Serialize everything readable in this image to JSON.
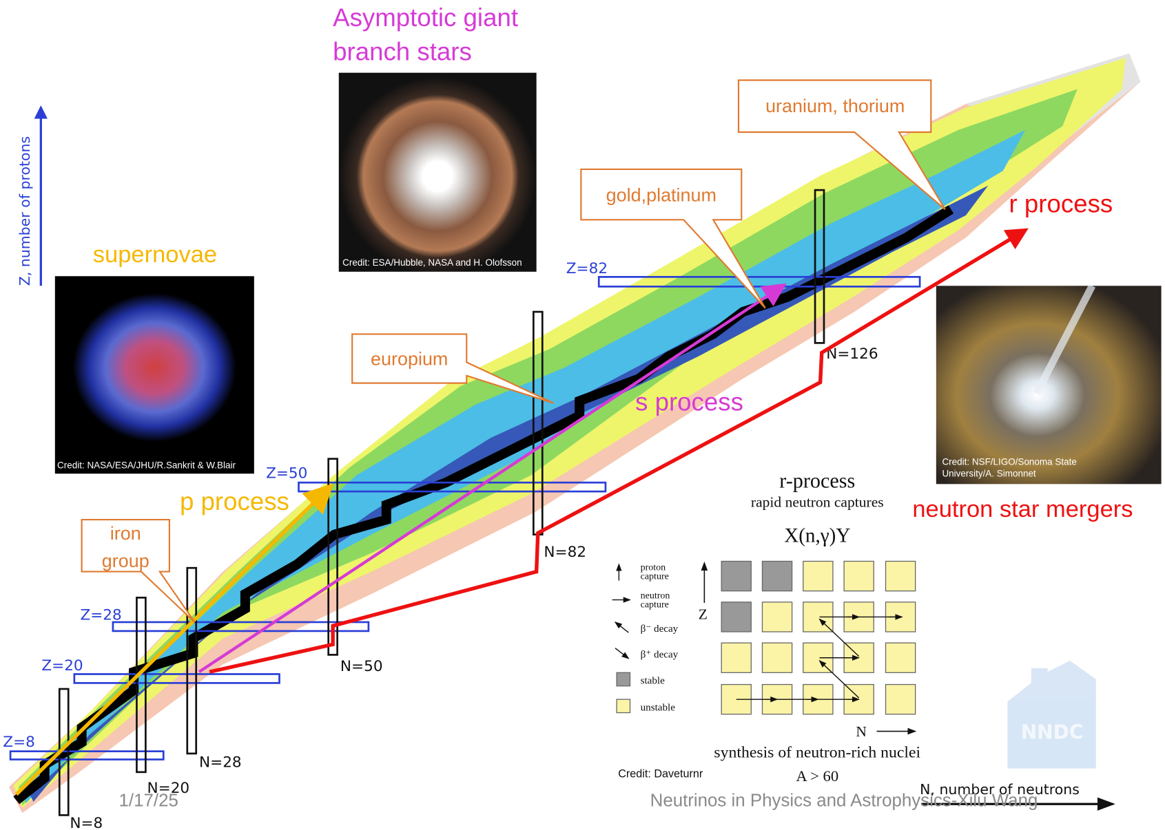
{
  "sources": {
    "agb_stars": [
      "Asymptotic giant",
      "branch stars"
    ],
    "supernovae": "supernovae",
    "neutron_star_mergers": "neutron star mergers"
  },
  "credits": {
    "agb_stars": "Credit: ESA/Hubble, NASA and H. Olofsson",
    "supernovae": "Credit: NASA/ESA/JHU/R.Sankrit & W.Blair",
    "neutron_star_mergers": [
      "Credit: NSF/LIGO/Sonoma State",
      "University/A. Simonnet"
    ]
  },
  "processes": {
    "p": "p process",
    "s": "s process",
    "r": "r process"
  },
  "callouts": [
    "uranium, thorium",
    "gold,platinum",
    "europium",
    [
      "iron",
      "group"
    ]
  ],
  "axes": {
    "z": "Z, number of protons",
    "n": "N, number of neutrons"
  },
  "magic_numbers": {
    "z": [
      "Z=8",
      "Z=20",
      "Z=28",
      "Z=50",
      "Z=82"
    ],
    "n": [
      "N=8",
      "N=20",
      "N=28",
      "N=50",
      "N=82",
      "N=126"
    ]
  },
  "inset": {
    "title": "r-process",
    "subtitle": "rapid neutron captures",
    "reaction": "X(n,γ)Y",
    "legend": [
      [
        "proton",
        "capture"
      ],
      [
        "neutron",
        "capture"
      ],
      "β⁻ decay",
      "β⁺ decay",
      "stable",
      "unstable"
    ],
    "z_axis": "Z",
    "n_axis": "N",
    "caption": "synthesis of neutron-rich nuclei",
    "mass": "A > 60",
    "credit": "Credit: Daveturnr"
  },
  "logo": "NNDC",
  "footer": {
    "date": "1/17/25",
    "presenter": "Neutrinos in Physics and Astrophysics-Xilu Wang"
  }
}
